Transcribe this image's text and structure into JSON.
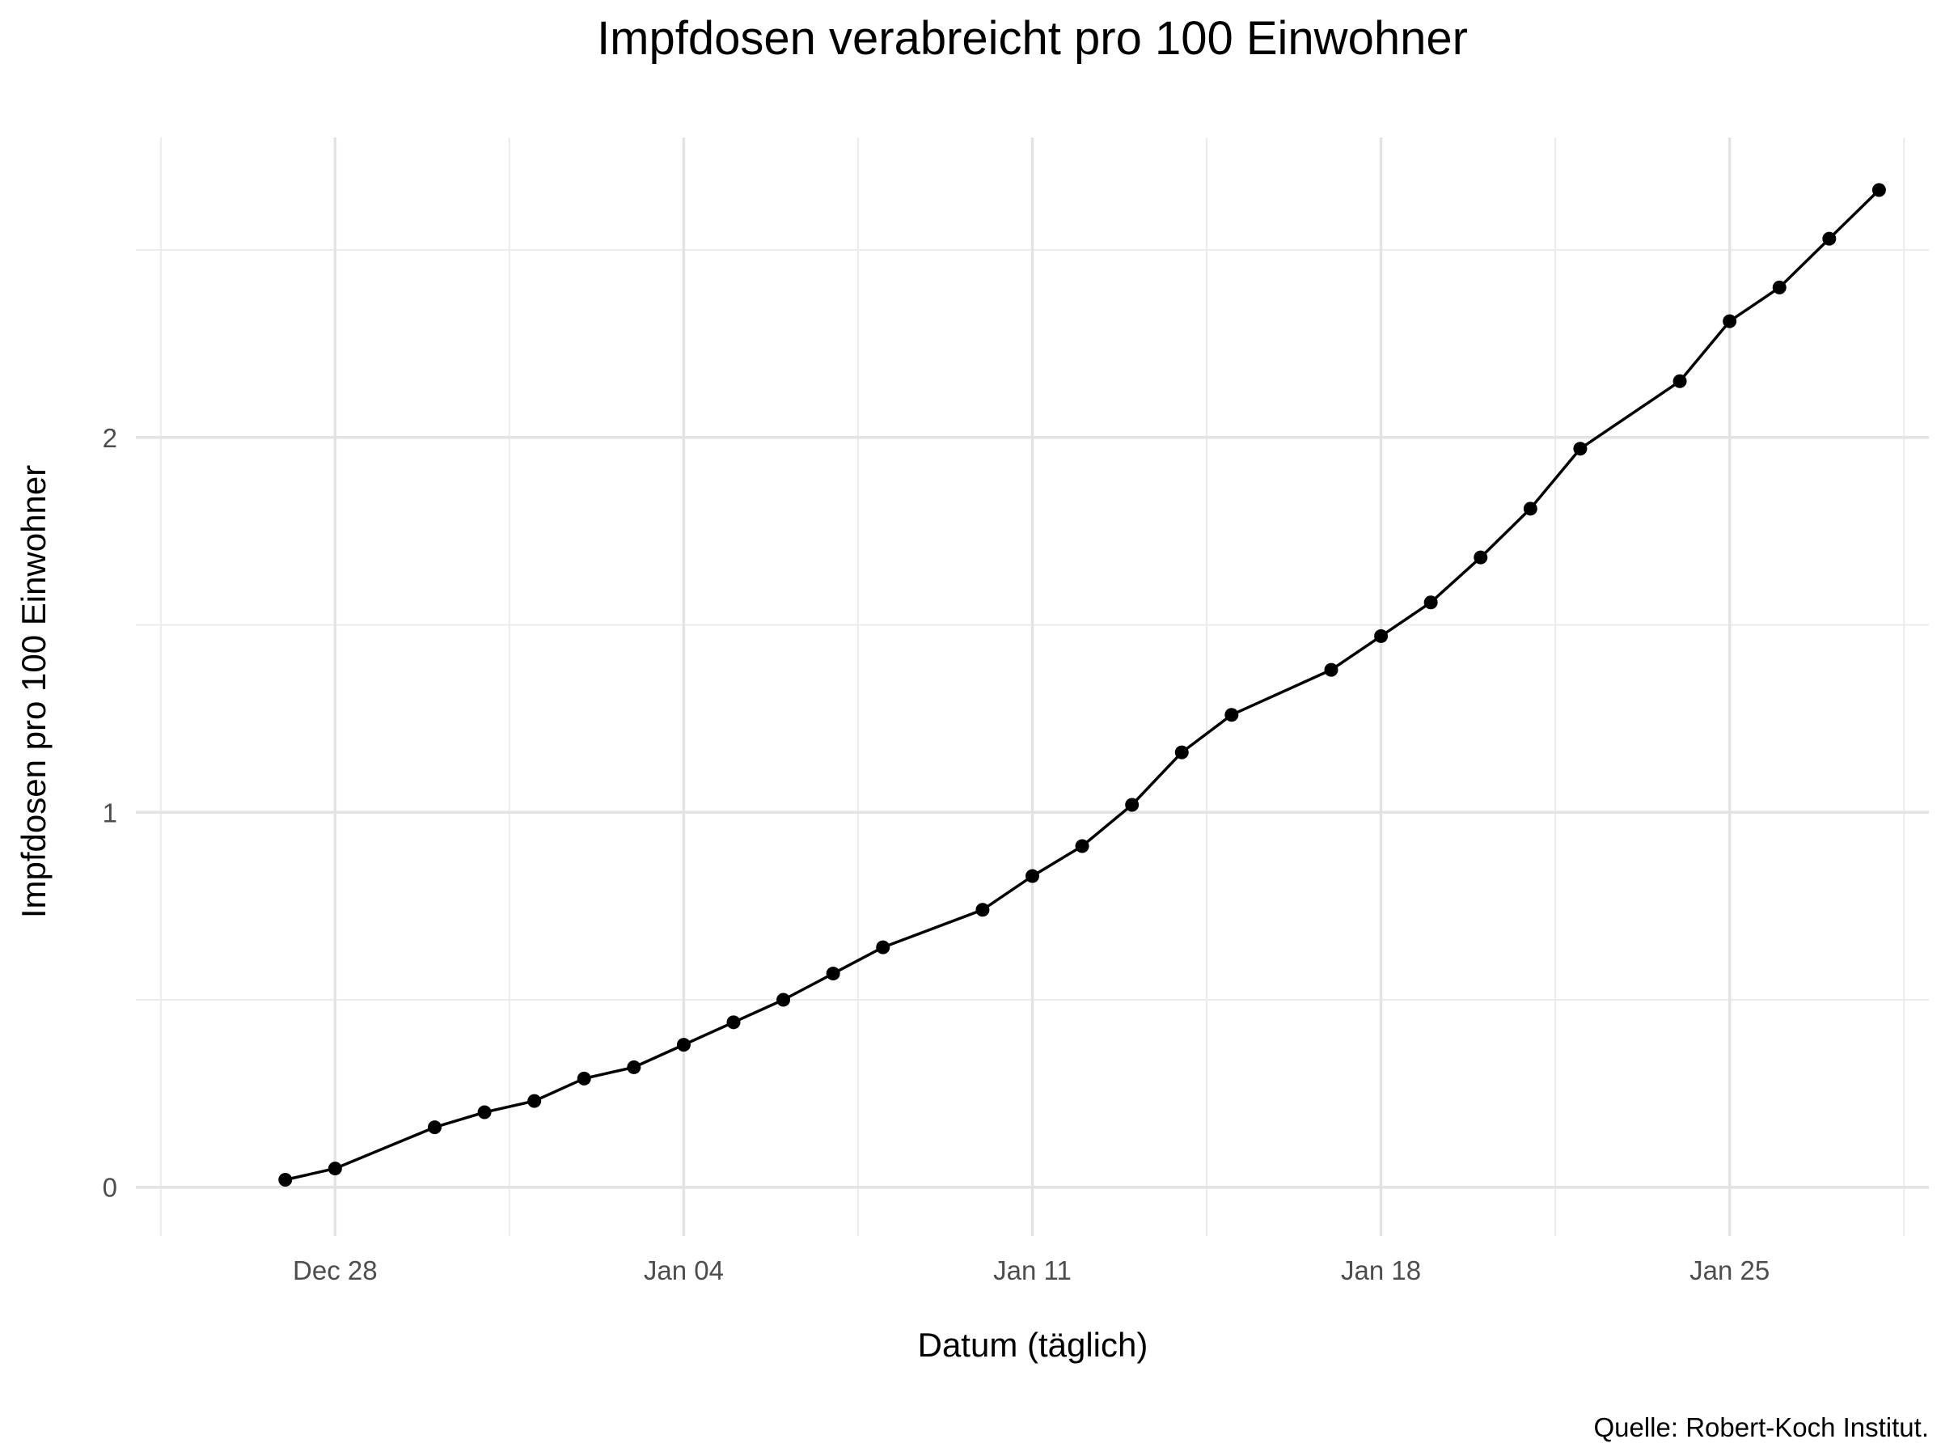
{
  "chart_data": {
    "type": "line",
    "title": "Impfdosen verabreicht pro 100 Einwohner",
    "xlabel": "Datum (täglich)",
    "ylabel": "Impfdosen pro 100 Einwohner",
    "caption": "Quelle: Robert-Koch Institut.",
    "x_ticks": [
      {
        "date": "2020-12-28",
        "label": "Dec 28"
      },
      {
        "date": "2021-01-04",
        "label": "Jan 04"
      },
      {
        "date": "2021-01-11",
        "label": "Jan 11"
      },
      {
        "date": "2021-01-18",
        "label": "Jan 18"
      },
      {
        "date": "2021-01-25",
        "label": "Jan 25"
      }
    ],
    "y_ticks": [
      0,
      1,
      2
    ],
    "xlim": [
      "2020-12-24",
      "2021-01-29"
    ],
    "ylim": [
      -0.13,
      2.8
    ],
    "grid": true,
    "series": [
      {
        "color": "#000000",
        "points": [
          {
            "x": "2020-12-27",
            "y": 0.02
          },
          {
            "x": "2020-12-28",
            "y": 0.05
          },
          {
            "x": "2020-12-30",
            "y": 0.16
          },
          {
            "x": "2020-12-31",
            "y": 0.2
          },
          {
            "x": "2021-01-01",
            "y": 0.23
          },
          {
            "x": "2021-01-02",
            "y": 0.29
          },
          {
            "x": "2021-01-03",
            "y": 0.32
          },
          {
            "x": "2021-01-04",
            "y": 0.38
          },
          {
            "x": "2021-01-05",
            "y": 0.44
          },
          {
            "x": "2021-01-06",
            "y": 0.5
          },
          {
            "x": "2021-01-07",
            "y": 0.57
          },
          {
            "x": "2021-01-08",
            "y": 0.64
          },
          {
            "x": "2021-01-10",
            "y": 0.74
          },
          {
            "x": "2021-01-11",
            "y": 0.83
          },
          {
            "x": "2021-01-12",
            "y": 0.91
          },
          {
            "x": "2021-01-13",
            "y": 1.02
          },
          {
            "x": "2021-01-14",
            "y": 1.16
          },
          {
            "x": "2021-01-15",
            "y": 1.26
          },
          {
            "x": "2021-01-17",
            "y": 1.38
          },
          {
            "x": "2021-01-18",
            "y": 1.47
          },
          {
            "x": "2021-01-19",
            "y": 1.56
          },
          {
            "x": "2021-01-20",
            "y": 1.68
          },
          {
            "x": "2021-01-21",
            "y": 1.81
          },
          {
            "x": "2021-01-22",
            "y": 1.97
          },
          {
            "x": "2021-01-24",
            "y": 2.15
          },
          {
            "x": "2021-01-25",
            "y": 2.31
          },
          {
            "x": "2021-01-26",
            "y": 2.4
          },
          {
            "x": "2021-01-27",
            "y": 2.53
          },
          {
            "x": "2021-01-28",
            "y": 2.66
          }
        ]
      }
    ]
  }
}
